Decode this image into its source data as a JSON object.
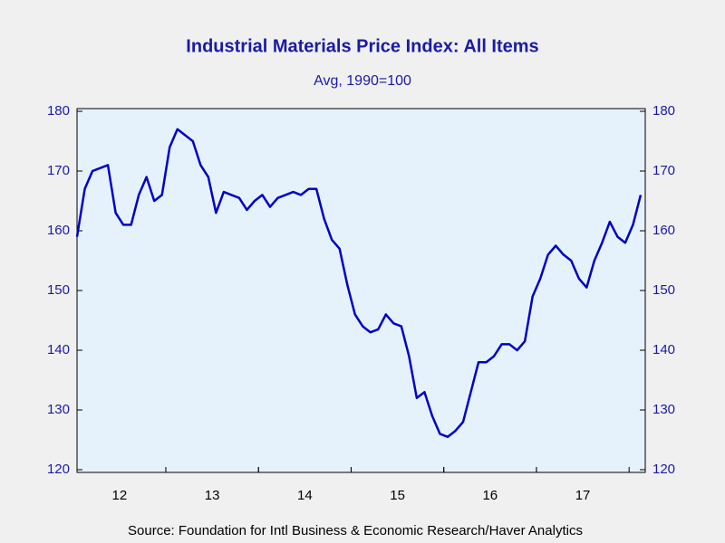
{
  "chart_data": {
    "type": "line",
    "title": "Industrial Materials Price Index: All Items",
    "subtitle": "Avg, 1990=100",
    "source": "Source:  Foundation for Intl Business & Economic Research/Haver Analytics",
    "categories": [
      null,
      null,
      null,
      null,
      null,
      null,
      "12",
      null,
      null,
      null,
      null,
      null,
      null,
      null,
      null,
      null,
      null,
      null,
      "13",
      null,
      null,
      null,
      null,
      null,
      null,
      null,
      null,
      null,
      null,
      null,
      "14",
      null,
      null,
      null,
      null,
      null,
      null,
      null,
      null,
      null,
      null,
      null,
      "15",
      null,
      null,
      null,
      null,
      null,
      null,
      null,
      null,
      null,
      null,
      null,
      "16",
      null,
      null,
      null,
      null,
      null,
      null,
      null,
      null,
      null,
      null,
      null,
      "17",
      null,
      null,
      null,
      null,
      null,
      null,
      null
    ],
    "series": [
      {
        "name": "Industrial Materials Price Index",
        "color": "#0000c8",
        "values": [
          159,
          167,
          170,
          170.5,
          171,
          163,
          161,
          161,
          166,
          169,
          165,
          166,
          174,
          177,
          176,
          175,
          171,
          169,
          163,
          166.5,
          166,
          165.5,
          163.5,
          165,
          166,
          164,
          165.5,
          166,
          166.5,
          166,
          167,
          167,
          162,
          158.5,
          157,
          151,
          146,
          144,
          143,
          143.5,
          146,
          144.5,
          144,
          139,
          132,
          133,
          129,
          126,
          125.5,
          126.5,
          128,
          133,
          138,
          138,
          139,
          141,
          141,
          140,
          141.5,
          149,
          152,
          156,
          157.5,
          156,
          155,
          152,
          150.5,
          155,
          158,
          161.5,
          159,
          158,
          161,
          166
        ]
      }
    ],
    "ylim": [
      120,
      180
    ],
    "yticks": [
      120,
      130,
      140,
      150,
      160,
      170,
      180
    ]
  }
}
